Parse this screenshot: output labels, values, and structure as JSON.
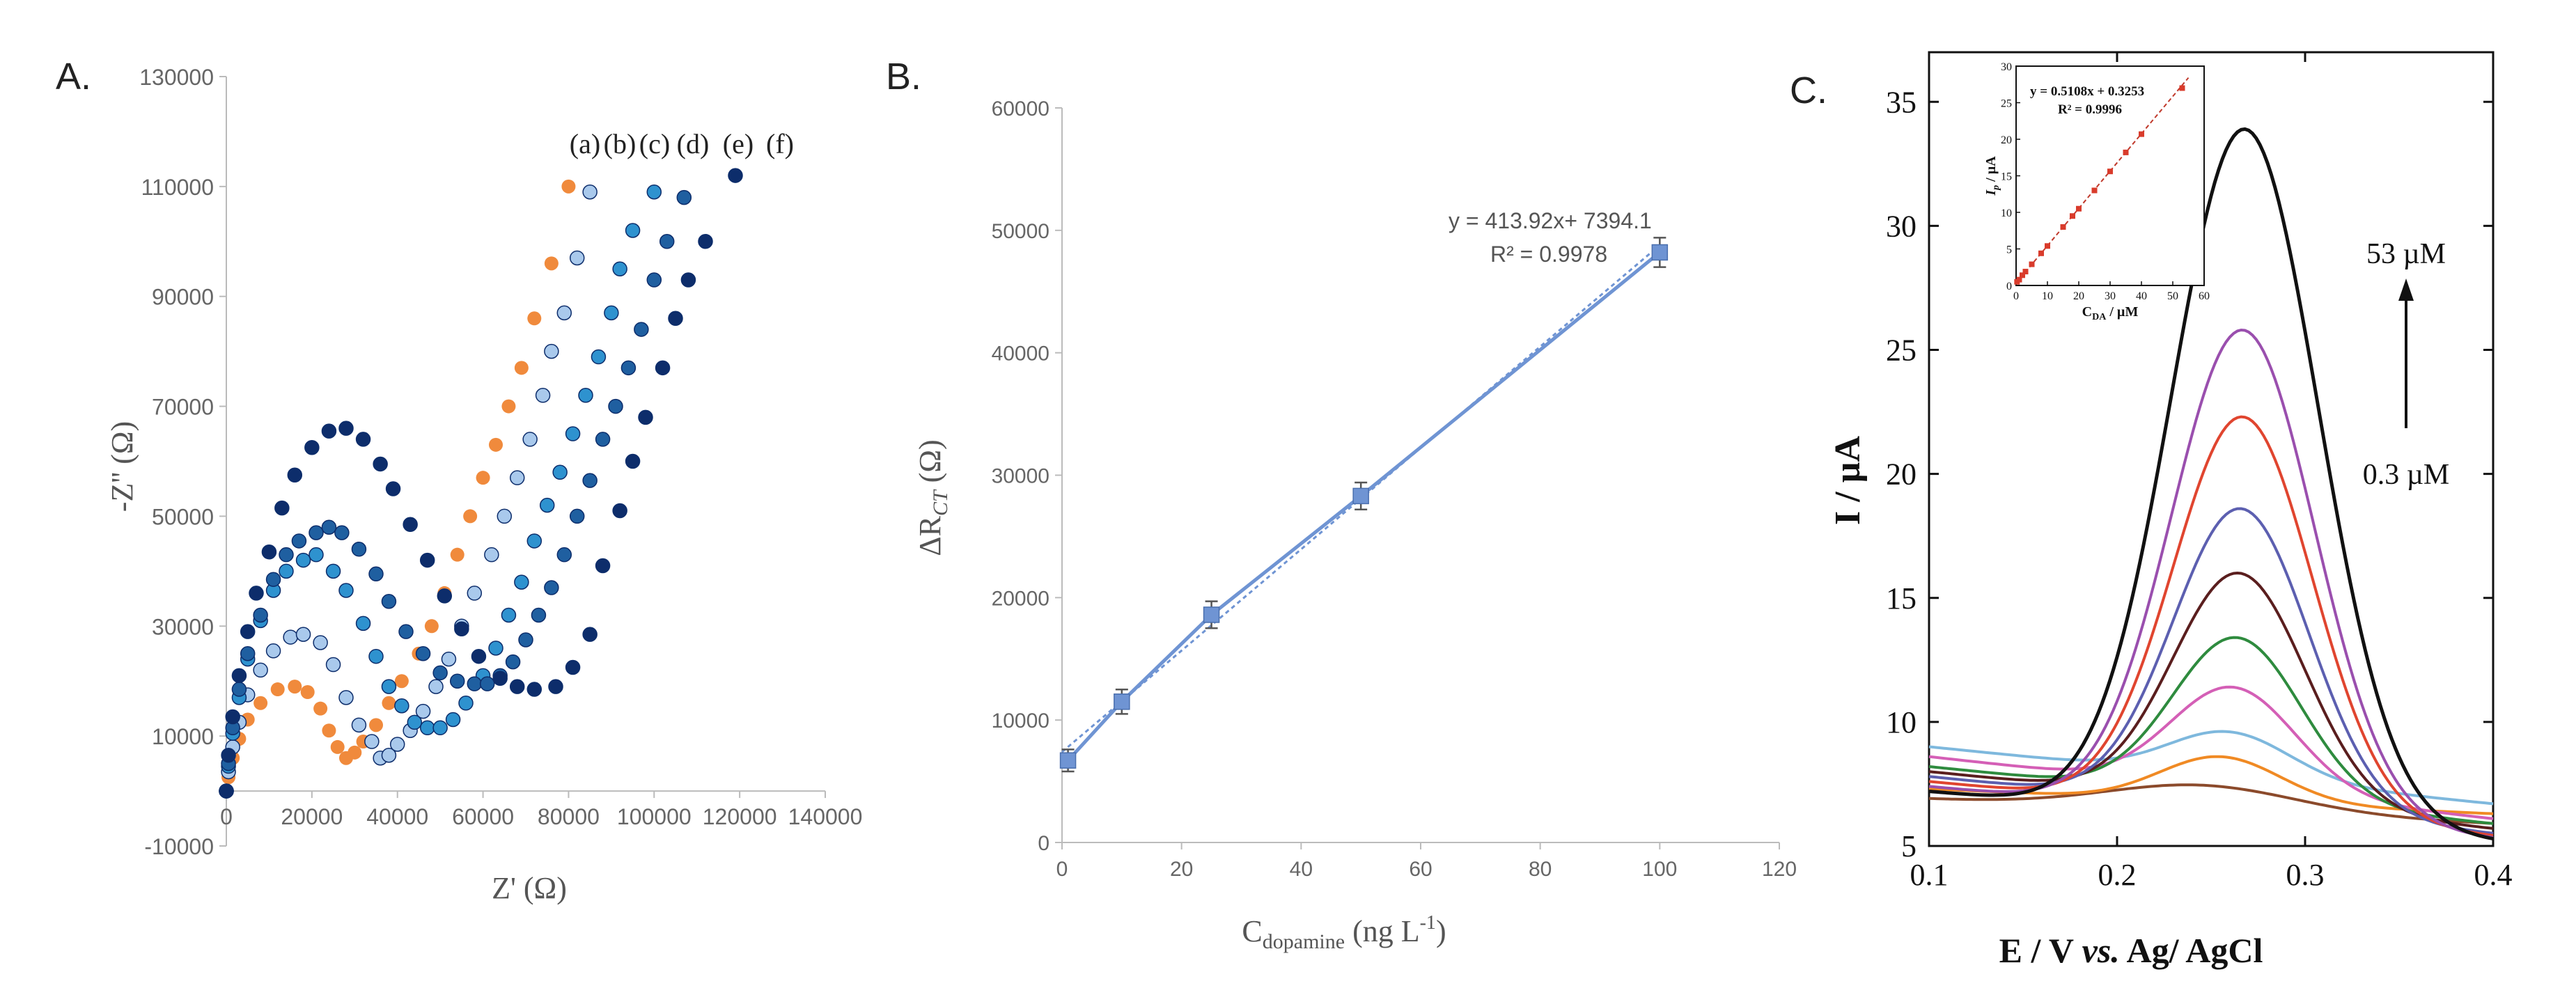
{
  "chart_data": [
    {
      "type": "scatter",
      "panel_label": "A.",
      "xlabel": "Z' (Ω)",
      "ylabel": "-Z'' (Ω)",
      "xlim": [
        0,
        140000
      ],
      "ylim": [
        -10000,
        130000
      ],
      "x_ticks": [
        "0",
        "20000",
        "40000",
        "60000",
        "80000",
        "100000",
        "120000",
        "140000"
      ],
      "y_ticks": [
        "-10000",
        "10000",
        "30000",
        "50000",
        "70000",
        "90000",
        "110000",
        "130000"
      ],
      "series": [
        {
          "name": "(a)",
          "color": "#f08a3c",
          "points": [
            [
              0,
              0
            ],
            [
              500,
              2500
            ],
            [
              1500,
              6000
            ],
            [
              3000,
              9500
            ],
            [
              5000,
              13000
            ],
            [
              8000,
              16000
            ],
            [
              12000,
              18500
            ],
            [
              16000,
              19000
            ],
            [
              19000,
              18000
            ],
            [
              22000,
              15000
            ],
            [
              24000,
              11000
            ],
            [
              26000,
              8000
            ],
            [
              28000,
              6000
            ],
            [
              30000,
              7000
            ],
            [
              32000,
              9000
            ],
            [
              35000,
              12000
            ],
            [
              38000,
              16000
            ],
            [
              41000,
              20000
            ],
            [
              45000,
              25000
            ],
            [
              48000,
              30000
            ],
            [
              51000,
              36000
            ],
            [
              54000,
              43000
            ],
            [
              57000,
              50000
            ],
            [
              60000,
              57000
            ],
            [
              63000,
              63000
            ],
            [
              66000,
              70000
            ],
            [
              69000,
              77000
            ],
            [
              72000,
              86000
            ],
            [
              76000,
              96000
            ],
            [
              80000,
              110000
            ]
          ]
        },
        {
          "name": "(b)",
          "color": "#a9c9ec",
          "points": [
            [
              0,
              0
            ],
            [
              500,
              3500
            ],
            [
              1500,
              8000
            ],
            [
              3000,
              12500
            ],
            [
              5000,
              17500
            ],
            [
              8000,
              22000
            ],
            [
              11000,
              25500
            ],
            [
              15000,
              28000
            ],
            [
              18000,
              28500
            ],
            [
              22000,
              27000
            ],
            [
              25000,
              23000
            ],
            [
              28000,
              17000
            ],
            [
              31000,
              12000
            ],
            [
              34000,
              9000
            ],
            [
              36000,
              6000
            ],
            [
              38000,
              6500
            ],
            [
              40000,
              8500
            ],
            [
              43000,
              11000
            ],
            [
              46000,
              14500
            ],
            [
              49000,
              19000
            ],
            [
              52000,
              24000
            ],
            [
              55000,
              30000
            ],
            [
              58000,
              36000
            ],
            [
              62000,
              43000
            ],
            [
              65000,
              50000
            ],
            [
              68000,
              57000
            ],
            [
              71000,
              64000
            ],
            [
              74000,
              72000
            ],
            [
              76000,
              80000
            ],
            [
              79000,
              87000
            ],
            [
              82000,
              97000
            ],
            [
              85000,
              109000
            ]
          ]
        },
        {
          "name": "(c)",
          "color": "#2e92cf",
          "points": [
            [
              0,
              0
            ],
            [
              500,
              4500
            ],
            [
              1500,
              10500
            ],
            [
              3000,
              17000
            ],
            [
              5000,
              24000
            ],
            [
              8000,
              31000
            ],
            [
              11000,
              36500
            ],
            [
              14000,
              40000
            ],
            [
              18000,
              42000
            ],
            [
              21000,
              43000
            ],
            [
              25000,
              40000
            ],
            [
              28000,
              36500
            ],
            [
              32000,
              30500
            ],
            [
              35000,
              24500
            ],
            [
              38000,
              19000
            ],
            [
              41000,
              15500
            ],
            [
              44000,
              12500
            ],
            [
              47000,
              11500
            ],
            [
              50000,
              11500
            ],
            [
              53000,
              13000
            ],
            [
              56000,
              16000
            ],
            [
              60000,
              21000
            ],
            [
              63000,
              26000
            ],
            [
              66000,
              32000
            ],
            [
              69000,
              38000
            ],
            [
              72000,
              45500
            ],
            [
              75000,
              52000
            ],
            [
              78000,
              58000
            ],
            [
              81000,
              65000
            ],
            [
              84000,
              72000
            ],
            [
              87000,
              79000
            ],
            [
              90000,
              87000
            ],
            [
              92000,
              95000
            ],
            [
              95000,
              102000
            ],
            [
              100000,
              109000
            ]
          ]
        },
        {
          "name": "(d)",
          "color": "#1f5fa0",
          "points": [
            [
              0,
              0
            ],
            [
              500,
              5000
            ],
            [
              1500,
              11500
            ],
            [
              3000,
              18500
            ],
            [
              5000,
              25000
            ],
            [
              8000,
              32000
            ],
            [
              11000,
              38500
            ],
            [
              14000,
              43000
            ],
            [
              17000,
              45500
            ],
            [
              21000,
              47000
            ],
            [
              24000,
              48000
            ],
            [
              27000,
              47000
            ],
            [
              31000,
              44000
            ],
            [
              35000,
              39500
            ],
            [
              38000,
              34500
            ],
            [
              42000,
              29000
            ],
            [
              46000,
              25000
            ],
            [
              50000,
              21500
            ],
            [
              54000,
              20000
            ],
            [
              58000,
              19500
            ],
            [
              61000,
              19500
            ],
            [
              64000,
              21000
            ],
            [
              67000,
              23500
            ],
            [
              70000,
              27500
            ],
            [
              73000,
              32000
            ],
            [
              76000,
              37000
            ],
            [
              79000,
              43000
            ],
            [
              82000,
              50000
            ],
            [
              85000,
              56500
            ],
            [
              88000,
              64000
            ],
            [
              91000,
              70000
            ],
            [
              94000,
              77000
            ],
            [
              97000,
              84000
            ],
            [
              100000,
              93000
            ],
            [
              103000,
              100000
            ],
            [
              107000,
              108000
            ]
          ]
        },
        {
          "name": "(e)",
          "color": "#0d2d6b",
          "points": [
            [
              0,
              0
            ],
            [
              500,
              6500
            ],
            [
              1500,
              13500
            ],
            [
              3000,
              21000
            ],
            [
              5000,
              29000
            ],
            [
              7000,
              36000
            ],
            [
              10000,
              43500
            ],
            [
              13000,
              51500
            ],
            [
              16000,
              57500
            ],
            [
              20000,
              62500
            ],
            [
              24000,
              65500
            ],
            [
              28000,
              66000
            ],
            [
              32000,
              64000
            ],
            [
              36000,
              59500
            ],
            [
              39000,
              55000
            ],
            [
              43000,
              48500
            ],
            [
              47000,
              42000
            ],
            [
              51000,
              35500
            ],
            [
              55000,
              29500
            ],
            [
              59000,
              24500
            ],
            [
              64000,
              20500
            ],
            [
              68000,
              19000
            ],
            [
              72000,
              18500
            ],
            [
              77000,
              19000
            ],
            [
              81000,
              22500
            ],
            [
              85000,
              28500
            ],
            [
              88000,
              41000
            ],
            [
              92000,
              51000
            ],
            [
              95000,
              60000
            ],
            [
              98000,
              68000
            ],
            [
              102000,
              77000
            ],
            [
              105000,
              86000
            ],
            [
              108000,
              93000
            ],
            [
              112000,
              100000
            ],
            [
              119000,
              112000
            ]
          ]
        }
      ],
      "annotations": [
        "(a)",
        "(b)",
        "(c)",
        "(d)",
        "(e)",
        "(f)"
      ]
    },
    {
      "type": "line",
      "panel_label": "B.",
      "xlabel": "C",
      "xlabel_sub": "dopamine",
      "xlabel_unit": " (ng L",
      "xlabel_sup": "-1",
      "xlabel_end": ")",
      "ylabel": "ΔR",
      "ylabel_sub": "CT",
      "ylabel_unit": " (Ω)",
      "xlim": [
        0,
        120
      ],
      "ylim": [
        0,
        60000
      ],
      "x_ticks": [
        "0",
        "20",
        "40",
        "60",
        "80",
        "100",
        "120"
      ],
      "y_ticks": [
        "0",
        "10000",
        "20000",
        "30000",
        "40000",
        "50000",
        "60000"
      ],
      "x": [
        1,
        10,
        25,
        50,
        100
      ],
      "y": [
        6700,
        11500,
        18600,
        28300,
        48200
      ],
      "error": [
        900,
        1000,
        1100,
        1100,
        1200
      ],
      "fit_slope": 413.92,
      "fit_intercept": 7394.1,
      "color": "#6f94d3",
      "equation": "y = 413.92x+ 7394.1",
      "r2": "R² = 0.9978"
    },
    {
      "type": "line",
      "panel_label": "C.",
      "xlabel": "E / V vs. Ag/ AgCl",
      "xlabel_pre": "E / V ",
      "xlabel_italic": "vs.",
      "xlabel_post": " Ag/ AgCl",
      "ylabel": "I / µA",
      "xlim": [
        0.1,
        0.4
      ],
      "ylim": [
        5,
        37
      ],
      "x_ticks": [
        "0.1",
        "0.2",
        "0.3",
        "0.4"
      ],
      "y_ticks": [
        "5",
        "10",
        "15",
        "20",
        "25",
        "30",
        "35"
      ],
      "annotation_high": "53 µM",
      "annotation_low": "0.3 µM",
      "series": [
        {
          "name": "0.3 µM",
          "color": "#8b4a2b",
          "peak": 7.45,
          "base_start": 6.9,
          "base_end": 5.9,
          "center": 0.245,
          "width": 0.05
        },
        {
          "name": "c2",
          "color": "#f08a24",
          "peak": 8.6,
          "base_start": 7.3,
          "base_end": 6.3,
          "center": 0.255,
          "width": 0.032
        },
        {
          "name": "c3",
          "color": "#7eb8dd",
          "peak": 9.6,
          "base_start": 9.0,
          "base_end": 6.7,
          "center": 0.26,
          "width": 0.032
        },
        {
          "name": "c4",
          "color": "#d45fb6",
          "peak": 11.4,
          "base_start": 8.6,
          "base_end": 6.1,
          "center": 0.262,
          "width": 0.033
        },
        {
          "name": "c5",
          "color": "#2e8b3e",
          "peak": 13.4,
          "base_start": 8.2,
          "base_end": 5.9,
          "center": 0.264,
          "width": 0.034
        },
        {
          "name": "c6",
          "color": "#5a1e1e",
          "peak": 16.0,
          "base_start": 8.0,
          "base_end": 5.7,
          "center": 0.265,
          "width": 0.035
        },
        {
          "name": "c7",
          "color": "#5c5fb0",
          "peak": 18.6,
          "base_start": 7.8,
          "base_end": 5.5,
          "center": 0.266,
          "width": 0.036
        },
        {
          "name": "c8",
          "color": "#e0452f",
          "peak": 22.3,
          "base_start": 7.6,
          "base_end": 5.4,
          "center": 0.267,
          "width": 0.037
        },
        {
          "name": "c9",
          "color": "#9a4fae",
          "peak": 25.8,
          "base_start": 7.4,
          "base_end": 5.3,
          "center": 0.267,
          "width": 0.038
        },
        {
          "name": "53 µM",
          "color": "#111111",
          "peak": 33.9,
          "base_start": 7.2,
          "base_end": 5.2,
          "center": 0.268,
          "width": 0.039
        }
      ],
      "inset": {
        "type": "scatter",
        "xlabel": "C",
        "xlabel_sub": "DA",
        "xlabel_unit": " / µM",
        "ylabel": "I",
        "ylabel_sub": "p",
        "ylabel_unit": " / µA",
        "xlim": [
          0,
          60
        ],
        "ylim": [
          0,
          30
        ],
        "x_ticks": [
          "0",
          "10",
          "20",
          "30",
          "40",
          "50",
          "60"
        ],
        "y_ticks": [
          "0",
          "5",
          "10",
          "15",
          "20",
          "25",
          "30"
        ],
        "x": [
          0.3,
          1,
          2,
          3,
          5,
          8,
          10,
          15,
          18,
          20,
          25,
          30,
          35,
          40,
          53
        ],
        "y": [
          0.5,
          0.8,
          1.4,
          1.9,
          2.9,
          4.4,
          5.4,
          8.0,
          9.5,
          10.5,
          13.0,
          15.6,
          18.2,
          20.7,
          27.0
        ],
        "equation": "y = 0.5108x + 0.3253",
        "r2": "R² = 0.9996"
      }
    }
  ]
}
